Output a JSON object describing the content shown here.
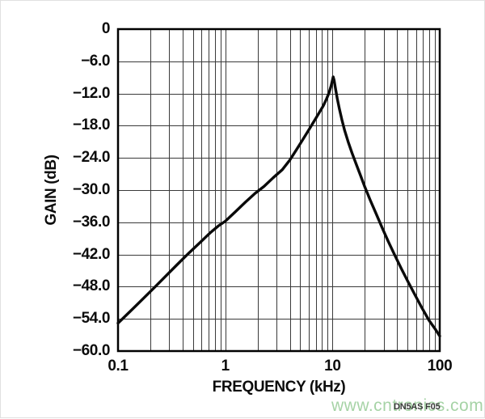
{
  "page": {
    "background": "#ffffff",
    "border_color": "#e0e0e0"
  },
  "watermark": {
    "text": "www.cntronics.com",
    "color": "#a6d3a6"
  },
  "figure_label": "DN5AS F05",
  "chart_data": {
    "type": "line",
    "title": "",
    "xlabel": "FREQUENCY (kHz)",
    "ylabel": "GAIN (dB)",
    "x_scale": "log",
    "xlim": [
      0.1,
      100
    ],
    "ylim": [
      -60,
      0
    ],
    "grid": true,
    "legend": "none",
    "grid_color": "#3a3a3a",
    "frame_color": "#000000",
    "line_color": "#0a0a0a",
    "x_ticks": [
      {
        "value": 0.1,
        "label": "0.1"
      },
      {
        "value": 1,
        "label": "1"
      },
      {
        "value": 10,
        "label": "10"
      },
      {
        "value": 100,
        "label": "100"
      }
    ],
    "y_ticks": [
      {
        "value": 0,
        "label": "0"
      },
      {
        "value": -6,
        "label": "−6.0"
      },
      {
        "value": -12,
        "label": "−12.0"
      },
      {
        "value": -18,
        "label": "−18.0"
      },
      {
        "value": -24,
        "label": "−24.0"
      },
      {
        "value": -30,
        "label": "−30.0"
      },
      {
        "value": -36,
        "label": "−36.0"
      },
      {
        "value": -42,
        "label": "−42.0"
      },
      {
        "value": -48,
        "label": "−48.0"
      },
      {
        "value": -54,
        "label": "−54.0"
      },
      {
        "value": -60,
        "label": "−60.0"
      }
    ],
    "series": [
      {
        "name": "gain",
        "peak": {
          "freq_khz": 10.1,
          "gain_db": -8.9
        },
        "points": [
          [
            0.1,
            -54.8
          ],
          [
            0.13,
            -52.6
          ],
          [
            0.17,
            -50.3
          ],
          [
            0.22,
            -48.1
          ],
          [
            0.28,
            -46.0
          ],
          [
            0.36,
            -43.8
          ],
          [
            0.46,
            -41.7
          ],
          [
            0.58,
            -39.8
          ],
          [
            0.72,
            -38.0
          ],
          [
            0.86,
            -36.7
          ],
          [
            1.0,
            -35.8
          ],
          [
            1.25,
            -34.0
          ],
          [
            1.55,
            -32.2
          ],
          [
            1.9,
            -30.6
          ],
          [
            2.3,
            -29.3
          ],
          [
            2.8,
            -27.7
          ],
          [
            3.4,
            -26.2
          ],
          [
            4.0,
            -24.4
          ],
          [
            4.6,
            -22.5
          ],
          [
            5.2,
            -20.8
          ],
          [
            5.8,
            -19.3
          ],
          [
            6.4,
            -17.9
          ],
          [
            7.0,
            -16.6
          ],
          [
            7.6,
            -15.4
          ],
          [
            8.2,
            -14.3
          ],
          [
            8.8,
            -13.0
          ],
          [
            9.3,
            -11.8
          ],
          [
            9.7,
            -10.6
          ],
          [
            10.0,
            -9.5
          ],
          [
            10.15,
            -8.9
          ],
          [
            10.35,
            -9.5
          ],
          [
            10.7,
            -11.2
          ],
          [
            11.1,
            -13.0
          ],
          [
            11.6,
            -14.9
          ],
          [
            12.2,
            -16.8
          ],
          [
            13.0,
            -18.9
          ],
          [
            14.0,
            -21.0
          ],
          [
            15.2,
            -23.1
          ],
          [
            16.6,
            -25.1
          ],
          [
            18.2,
            -27.2
          ],
          [
            20.0,
            -29.4
          ],
          [
            22.5,
            -31.9
          ],
          [
            25.5,
            -34.4
          ],
          [
            29.0,
            -37.0
          ],
          [
            33.0,
            -39.5
          ],
          [
            38.0,
            -42.1
          ],
          [
            44.0,
            -44.7
          ],
          [
            51.0,
            -47.2
          ],
          [
            59.0,
            -49.6
          ],
          [
            68.0,
            -51.9
          ],
          [
            79.0,
            -54.2
          ],
          [
            90.0,
            -55.8
          ],
          [
            100.0,
            -57.2
          ]
        ]
      }
    ]
  }
}
